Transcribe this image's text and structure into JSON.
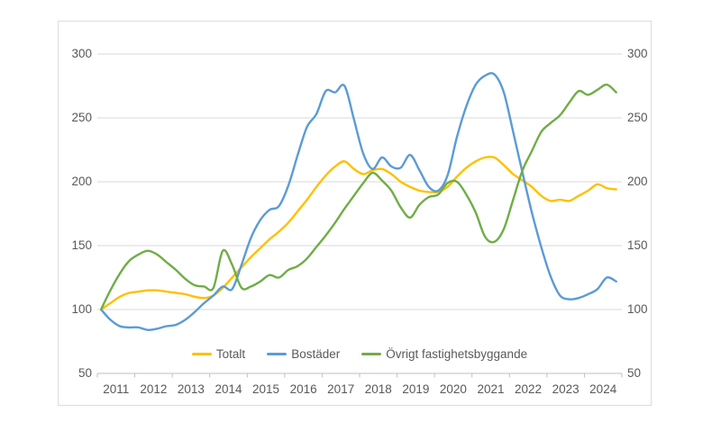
{
  "chart_data": {
    "type": "line",
    "x_start": 2011.0,
    "x_step": 0.25,
    "x_end": 2024.75,
    "x_unit": "year",
    "series": [
      {
        "name": "Totalt",
        "color": "#FFC000",
        "values": [
          100,
          105,
          110,
          113,
          114,
          115,
          115,
          114,
          113,
          112,
          110,
          109,
          111,
          117,
          125,
          133,
          141,
          148,
          155,
          161,
          168,
          177,
          186,
          196,
          205,
          212,
          216,
          210,
          206,
          209,
          210,
          206,
          200,
          196,
          193,
          192,
          192,
          196,
          204,
          211,
          216,
          219,
          219,
          213,
          206,
          201,
          196,
          189,
          185,
          186,
          185,
          189,
          193,
          198,
          195,
          194
        ]
      },
      {
        "name": "Bostäder",
        "color": "#5B9BD5",
        "values": [
          100,
          92,
          87,
          86,
          86,
          84,
          85,
          87,
          88,
          92,
          98,
          105,
          111,
          118,
          116,
          135,
          156,
          170,
          178,
          181,
          197,
          221,
          243,
          253,
          271,
          270,
          275,
          249,
          222,
          210,
          219,
          212,
          211,
          221,
          209,
          196,
          193,
          205,
          235,
          259,
          276,
          283,
          284,
          270,
          239,
          207,
          176,
          149,
          126,
          111,
          108,
          109,
          112,
          116,
          125,
          122
        ]
      },
      {
        "name": "Övrigt fastighetsbyggande",
        "color": "#70AD47",
        "values": [
          100,
          115,
          128,
          138,
          143,
          146,
          143,
          137,
          131,
          124,
          119,
          118,
          117,
          146,
          135,
          117,
          118,
          122,
          127,
          125,
          131,
          134,
          140,
          149,
          158,
          168,
          179,
          189,
          199,
          207,
          201,
          193,
          180,
          172,
          182,
          188,
          190,
          199,
          200,
          190,
          176,
          157,
          153,
          163,
          186,
          209,
          224,
          239,
          246,
          252,
          262,
          271,
          268,
          272,
          276,
          270
        ]
      }
    ],
    "ylim": [
      50,
      300
    ],
    "yticks": [
      50,
      100,
      150,
      200,
      250,
      300
    ],
    "x_tick_labels": [
      "2011",
      "2012",
      "2013",
      "2014",
      "2015",
      "2016",
      "2017",
      "2018",
      "2019",
      "2020",
      "2021",
      "2022",
      "2023",
      "2024"
    ],
    "dual_y_axis": true,
    "grid": true,
    "legend_position": "bottom-center"
  },
  "styles": {
    "grid_color": "#D9D9D9",
    "axis_color": "#BFBFBF",
    "label_color": "#595959",
    "background": "#FFFFFF"
  }
}
